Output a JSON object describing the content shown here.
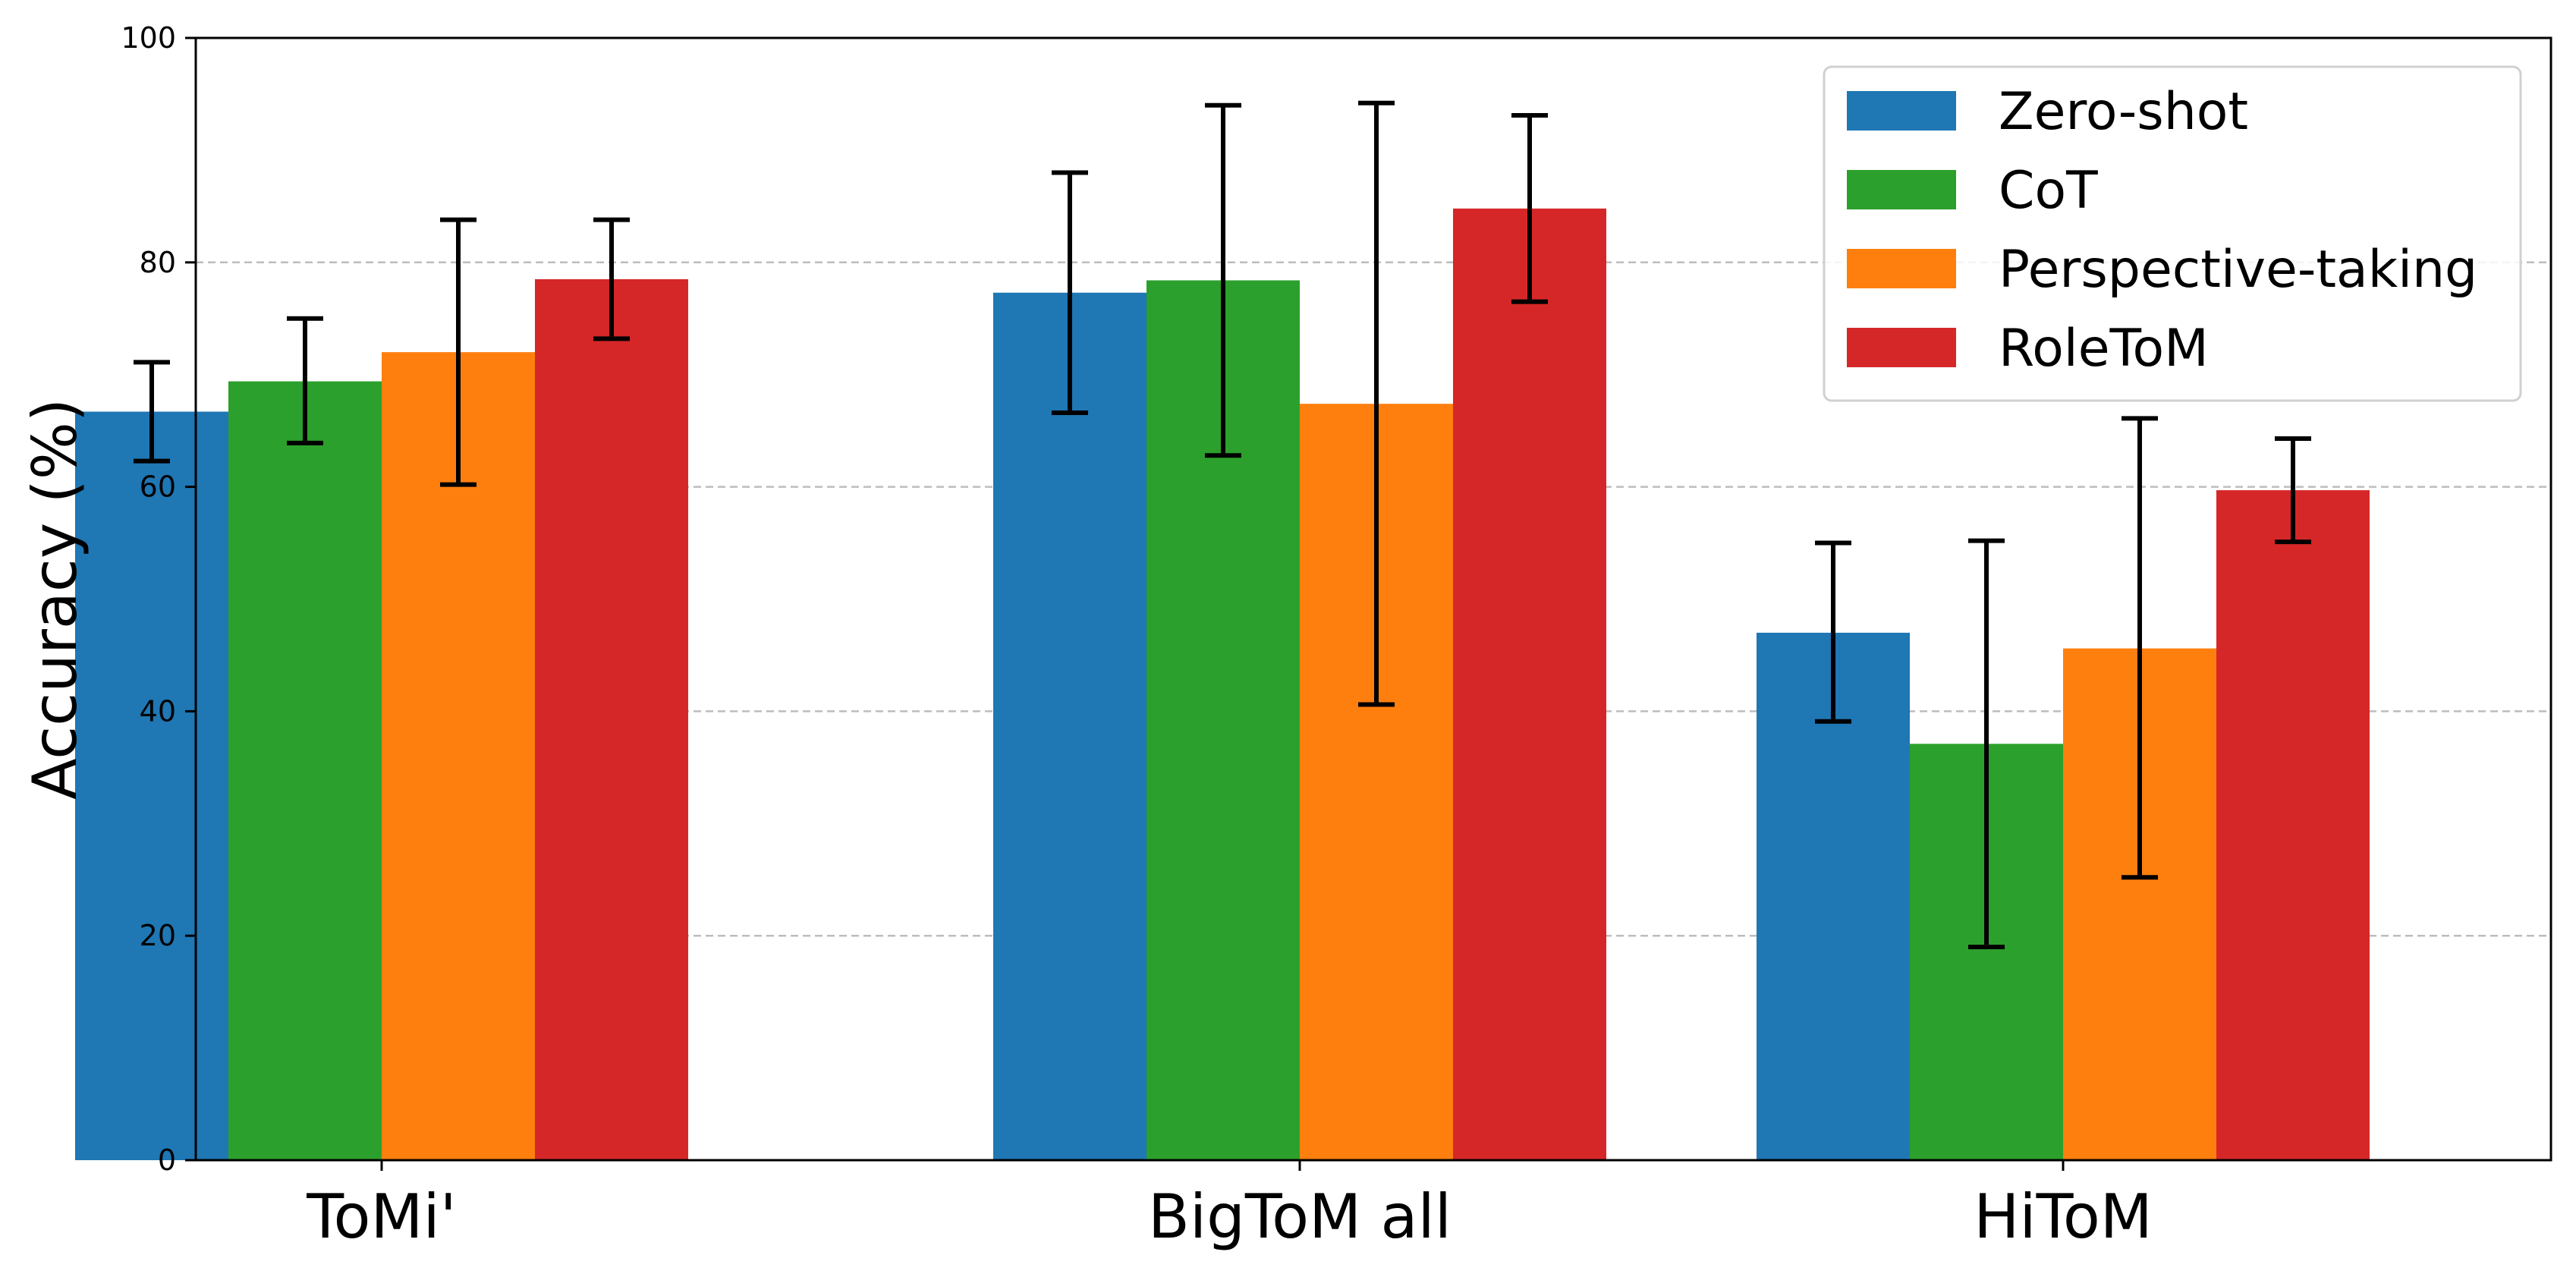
{
  "chart_data": {
    "type": "bar",
    "title": "",
    "xlabel": "",
    "ylabel": "Accuracy (%)",
    "ylim": [
      0,
      100
    ],
    "yticks": [
      "0",
      "20",
      "40",
      "60",
      "80",
      "100"
    ],
    "grid": "y-dashed",
    "legend_position": "top-right",
    "categories": [
      "ToMi'",
      "BigToM all",
      "HiToM"
    ],
    "series": [
      {
        "name": "Zero-shot",
        "color": "#1f77b4",
        "values": [
          66.7,
          77.3,
          47.0
        ],
        "err_low": [
          62.3,
          66.6,
          39.1
        ],
        "err_high": [
          71.1,
          88.0,
          55.0
        ]
      },
      {
        "name": "CoT",
        "color": "#2ca02c",
        "values": [
          69.4,
          78.4,
          37.1
        ],
        "err_low": [
          63.9,
          62.8,
          19.0
        ],
        "err_high": [
          75.0,
          94.0,
          55.2
        ]
      },
      {
        "name": "Perspective-taking",
        "color": "#ff7f0e",
        "values": [
          72.0,
          67.4,
          45.6
        ],
        "err_low": [
          60.2,
          40.6,
          25.2
        ],
        "err_high": [
          83.8,
          94.2,
          66.1
        ]
      },
      {
        "name": "RoleToM",
        "color": "#d62728",
        "values": [
          78.5,
          84.8,
          59.7
        ],
        "err_low": [
          73.2,
          76.5,
          55.1
        ],
        "err_high": [
          83.8,
          93.1,
          64.3
        ]
      }
    ]
  }
}
